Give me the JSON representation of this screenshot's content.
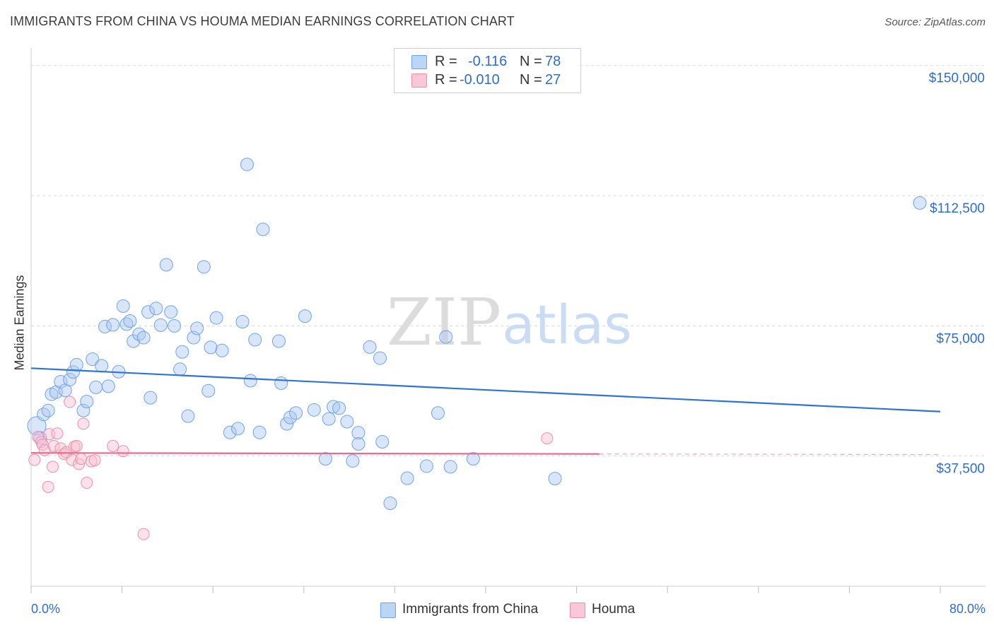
{
  "header": {
    "title": "IMMIGRANTS FROM CHINA VS HOUMA MEDIAN EARNINGS CORRELATION CHART",
    "source": "Source: ZipAtlas.com"
  },
  "legend": {
    "rows": [
      {
        "r_label": "R =",
        "r_value": "-0.116",
        "n_label": "N =",
        "n_value": "78",
        "color": "#6fa3ea",
        "fill": "#bcd5f7"
      },
      {
        "r_label": "R =",
        "r_value": "-0.010",
        "n_label": "N =",
        "n_value": "27",
        "color": "#ec8fab",
        "fill": "#f8c8d6"
      }
    ]
  },
  "bottom_legend": {
    "items": [
      {
        "label": "Immigrants from China",
        "color": "#6fa3ea",
        "fill": "#bcd5f7"
      },
      {
        "label": "Houma",
        "color": "#ec8fab",
        "fill": "#f8c8d6"
      }
    ]
  },
  "watermark": {
    "zip": "ZIP",
    "atlas": "atlas"
  },
  "colors": {
    "blue_line": "#2f73d6",
    "pink_line": "#e86a93",
    "axis_text": "#2f6dcc",
    "grid": "#d9d9d9"
  },
  "chart_data": {
    "type": "scatter",
    "title": "IMMIGRANTS FROM CHINA VS HOUMA MEDIAN EARNINGS CORRELATION CHART",
    "xlabel": "",
    "ylabel": "Median Earnings",
    "xlim": [
      0,
      80
    ],
    "ylim": [
      0,
      153000
    ],
    "x_tick_labels": [
      "0.0%",
      "80.0%"
    ],
    "y_ticks": [
      37500,
      75000,
      112500,
      150000
    ],
    "y_tick_labels": [
      "$37,500",
      "$75,000",
      "$112,500",
      "$150,000"
    ],
    "grid": "horizontal dashed",
    "legend_position": "top-center",
    "series": [
      {
        "name": "Immigrants from China",
        "r": -0.116,
        "n": 78,
        "trend": {
          "x": [
            0,
            80
          ],
          "y": [
            62800,
            50300
          ]
        },
        "points": [
          [
            0.5,
            46200
          ],
          [
            1.1,
            49500
          ],
          [
            1.5,
            50600
          ],
          [
            1.8,
            55300
          ],
          [
            2.2,
            55900
          ],
          [
            2.6,
            58900
          ],
          [
            3.0,
            56400
          ],
          [
            3.4,
            59500
          ],
          [
            3.7,
            61700
          ],
          [
            4.0,
            63800
          ],
          [
            4.6,
            50600
          ],
          [
            4.9,
            53200
          ],
          [
            5.4,
            65400
          ],
          [
            5.7,
            57300
          ],
          [
            6.2,
            63500
          ],
          [
            6.5,
            74800
          ],
          [
            6.8,
            57600
          ],
          [
            7.2,
            75300
          ],
          [
            7.7,
            61800
          ],
          [
            8.1,
            80700
          ],
          [
            8.4,
            75500
          ],
          [
            8.7,
            76400
          ],
          [
            9.0,
            70600
          ],
          [
            9.5,
            72600
          ],
          [
            9.9,
            71600
          ],
          [
            10.3,
            79000
          ],
          [
            10.5,
            54300
          ],
          [
            11.0,
            80000
          ],
          [
            11.4,
            75200
          ],
          [
            11.9,
            92600
          ],
          [
            12.3,
            79000
          ],
          [
            12.6,
            75000
          ],
          [
            13.3,
            67500
          ],
          [
            13.1,
            62500
          ],
          [
            13.8,
            49000
          ],
          [
            14.3,
            71600
          ],
          [
            14.6,
            74300
          ],
          [
            15.2,
            92000
          ],
          [
            15.6,
            56300
          ],
          [
            15.8,
            68800
          ],
          [
            16.3,
            77300
          ],
          [
            16.8,
            67900
          ],
          [
            17.5,
            44300
          ],
          [
            18.2,
            45400
          ],
          [
            18.6,
            76200
          ],
          [
            19.0,
            121500
          ],
          [
            19.3,
            59200
          ],
          [
            19.7,
            71000
          ],
          [
            20.1,
            44300
          ],
          [
            20.4,
            102800
          ],
          [
            21.8,
            70600
          ],
          [
            22.0,
            58500
          ],
          [
            22.5,
            46800
          ],
          [
            22.8,
            48600
          ],
          [
            23.3,
            49900
          ],
          [
            24.1,
            77800
          ],
          [
            24.9,
            50800
          ],
          [
            25.9,
            36700
          ],
          [
            26.2,
            48200
          ],
          [
            26.6,
            51700
          ],
          [
            27.1,
            51300
          ],
          [
            27.8,
            47400
          ],
          [
            28.3,
            36100
          ],
          [
            28.8,
            44200
          ],
          [
            28.8,
            41000
          ],
          [
            29.8,
            68900
          ],
          [
            30.7,
            65700
          ],
          [
            30.9,
            41600
          ],
          [
            31.6,
            23900
          ],
          [
            33.1,
            31100
          ],
          [
            34.8,
            34600
          ],
          [
            35.8,
            49900
          ],
          [
            36.5,
            71800
          ],
          [
            36.9,
            34400
          ],
          [
            38.9,
            36700
          ],
          [
            46.1,
            31000
          ],
          [
            78.2,
            110400
          ],
          [
            0.8,
            42700
          ]
        ]
      },
      {
        "name": "Houma",
        "r": -0.01,
        "n": 27,
        "trend": {
          "x": [
            0,
            50
          ],
          "y": [
            38400,
            38100
          ]
        },
        "points": [
          [
            0.3,
            36400
          ],
          [
            0.6,
            43000
          ],
          [
            0.9,
            41600
          ],
          [
            1.0,
            40800
          ],
          [
            1.2,
            39200
          ],
          [
            1.5,
            28600
          ],
          [
            1.6,
            43800
          ],
          [
            1.9,
            34400
          ],
          [
            2.0,
            40400
          ],
          [
            2.3,
            44000
          ],
          [
            2.6,
            39700
          ],
          [
            2.9,
            38100
          ],
          [
            3.1,
            38600
          ],
          [
            3.4,
            53100
          ],
          [
            3.6,
            36400
          ],
          [
            3.8,
            40200
          ],
          [
            4.0,
            40400
          ],
          [
            4.2,
            35200
          ],
          [
            4.4,
            36700
          ],
          [
            4.6,
            46800
          ],
          [
            4.9,
            29800
          ],
          [
            5.3,
            36000
          ],
          [
            5.6,
            36300
          ],
          [
            7.2,
            40400
          ],
          [
            8.1,
            38900
          ],
          [
            9.9,
            15000
          ],
          [
            45.4,
            42600
          ]
        ]
      }
    ]
  }
}
